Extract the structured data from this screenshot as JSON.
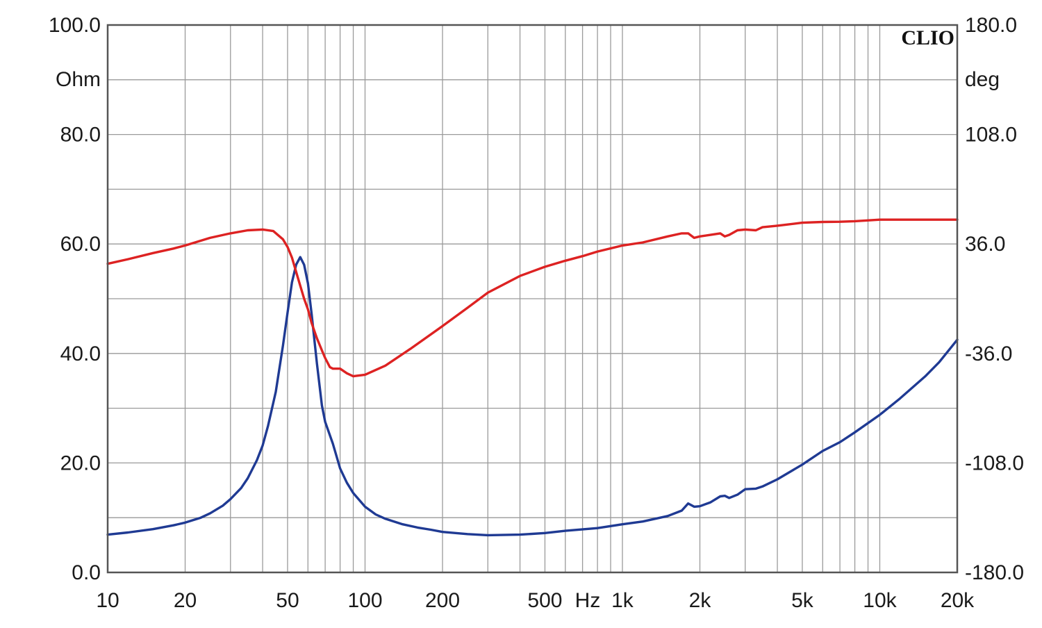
{
  "chart_data": {
    "type": "line",
    "brand": "CLIO",
    "x_scale": "log",
    "xlim": [
      10,
      20000
    ],
    "ylim_left": [
      0,
      100
    ],
    "ylim_right": [
      -180,
      180
    ],
    "left_unit": "Ohm",
    "right_unit": "deg",
    "x_unit_label": "Hz",
    "grid": true,
    "x_ticks": [
      {
        "value": 10,
        "label": "10"
      },
      {
        "value": 20,
        "label": "20"
      },
      {
        "value": 50,
        "label": "50"
      },
      {
        "value": 100,
        "label": "100"
      },
      {
        "value": 200,
        "label": "200"
      },
      {
        "value": 500,
        "label": "500"
      },
      {
        "value": 1000,
        "label": "1k"
      },
      {
        "value": 2000,
        "label": "2k"
      },
      {
        "value": 5000,
        "label": "5k"
      },
      {
        "value": 10000,
        "label": "10k"
      },
      {
        "value": 20000,
        "label": "20k"
      }
    ],
    "y_left_ticks": [
      {
        "value": 0,
        "label": "0.0"
      },
      {
        "value": 20,
        "label": "20.0"
      },
      {
        "value": 40,
        "label": "40.0"
      },
      {
        "value": 60,
        "label": "60.0"
      },
      {
        "value": 80,
        "label": "80.0"
      },
      {
        "value": 100,
        "label": "100.0"
      }
    ],
    "y_right_ticks": [
      {
        "value": -180,
        "label": "-180.0"
      },
      {
        "value": -108,
        "label": "-108.0"
      },
      {
        "value": -36,
        "label": "-36.0"
      },
      {
        "value": 36,
        "label": "36.0"
      },
      {
        "value": 108,
        "label": "108.0"
      },
      {
        "value": 180,
        "label": "180.0"
      }
    ],
    "series": [
      {
        "axis": "left",
        "color": "#1f3a93",
        "points": [
          [
            10,
            6.9
          ],
          [
            12,
            7.3
          ],
          [
            15,
            7.9
          ],
          [
            18,
            8.6
          ],
          [
            20,
            9.1
          ],
          [
            23,
            10.0
          ],
          [
            25,
            10.8
          ],
          [
            28,
            12.2
          ],
          [
            30,
            13.4
          ],
          [
            33,
            15.4
          ],
          [
            35,
            17.2
          ],
          [
            38,
            20.5
          ],
          [
            40,
            23.2
          ],
          [
            42,
            26.8
          ],
          [
            45,
            33.0
          ],
          [
            48,
            41.5
          ],
          [
            50,
            47.5
          ],
          [
            52,
            53.0
          ],
          [
            54,
            56.2
          ],
          [
            56,
            57.6
          ],
          [
            58,
            56.2
          ],
          [
            60,
            52.8
          ],
          [
            62,
            47.2
          ],
          [
            65,
            38.2
          ],
          [
            68,
            30.5
          ],
          [
            70,
            27.5
          ],
          [
            75,
            23.5
          ],
          [
            80,
            19.0
          ],
          [
            85,
            16.4
          ],
          [
            90,
            14.5
          ],
          [
            100,
            12.0
          ],
          [
            110,
            10.6
          ],
          [
            120,
            9.8
          ],
          [
            140,
            8.8
          ],
          [
            160,
            8.2
          ],
          [
            180,
            7.8
          ],
          [
            200,
            7.4
          ],
          [
            250,
            7.0
          ],
          [
            300,
            6.8
          ],
          [
            400,
            6.9
          ],
          [
            500,
            7.2
          ],
          [
            600,
            7.6
          ],
          [
            800,
            8.1
          ],
          [
            1000,
            8.8
          ],
          [
            1200,
            9.3
          ],
          [
            1500,
            10.3
          ],
          [
            1700,
            11.3
          ],
          [
            1800,
            12.6
          ],
          [
            1900,
            12.0
          ],
          [
            2000,
            12.1
          ],
          [
            2200,
            12.8
          ],
          [
            2400,
            13.9
          ],
          [
            2500,
            14.0
          ],
          [
            2600,
            13.6
          ],
          [
            2800,
            14.2
          ],
          [
            3000,
            15.2
          ],
          [
            3300,
            15.3
          ],
          [
            3500,
            15.7
          ],
          [
            4000,
            17.0
          ],
          [
            5000,
            19.7
          ],
          [
            6000,
            22.2
          ],
          [
            7000,
            23.8
          ],
          [
            8000,
            25.6
          ],
          [
            10000,
            28.8
          ],
          [
            12000,
            31.8
          ],
          [
            15000,
            35.8
          ],
          [
            17000,
            38.4
          ],
          [
            20000,
            42.5
          ]
        ]
      },
      {
        "axis": "right",
        "color": "#dd2222",
        "points": [
          [
            10,
            23
          ],
          [
            12,
            26
          ],
          [
            15,
            30
          ],
          [
            18,
            33
          ],
          [
            20,
            35
          ],
          [
            25,
            40
          ],
          [
            30,
            43
          ],
          [
            35,
            45
          ],
          [
            40,
            45.5
          ],
          [
            44,
            44.5
          ],
          [
            48,
            39
          ],
          [
            50,
            34
          ],
          [
            52,
            27
          ],
          [
            55,
            13
          ],
          [
            58,
            0
          ],
          [
            60,
            -7
          ],
          [
            62,
            -16
          ],
          [
            65,
            -26
          ],
          [
            68,
            -34
          ],
          [
            70,
            -39
          ],
          [
            73,
            -45
          ],
          [
            75,
            -46
          ],
          [
            80,
            -46
          ],
          [
            85,
            -49
          ],
          [
            90,
            -51
          ],
          [
            100,
            -50
          ],
          [
            120,
            -44
          ],
          [
            150,
            -33
          ],
          [
            200,
            -18
          ],
          [
            250,
            -6
          ],
          [
            300,
            4
          ],
          [
            400,
            15
          ],
          [
            500,
            21
          ],
          [
            600,
            25
          ],
          [
            700,
            28
          ],
          [
            800,
            31
          ],
          [
            1000,
            35
          ],
          [
            1200,
            37
          ],
          [
            1500,
            41
          ],
          [
            1700,
            43
          ],
          [
            1800,
            43
          ],
          [
            1900,
            40
          ],
          [
            2000,
            41
          ],
          [
            2200,
            42
          ],
          [
            2400,
            43
          ],
          [
            2500,
            41
          ],
          [
            2600,
            42
          ],
          [
            2800,
            45
          ],
          [
            3000,
            45.5
          ],
          [
            3300,
            45
          ],
          [
            3500,
            47
          ],
          [
            4000,
            48
          ],
          [
            5000,
            50
          ],
          [
            6000,
            50.5
          ],
          [
            7000,
            50.6
          ],
          [
            8000,
            51
          ],
          [
            10000,
            52
          ],
          [
            12000,
            52
          ],
          [
            15000,
            52
          ],
          [
            20000,
            52
          ]
        ]
      }
    ]
  }
}
